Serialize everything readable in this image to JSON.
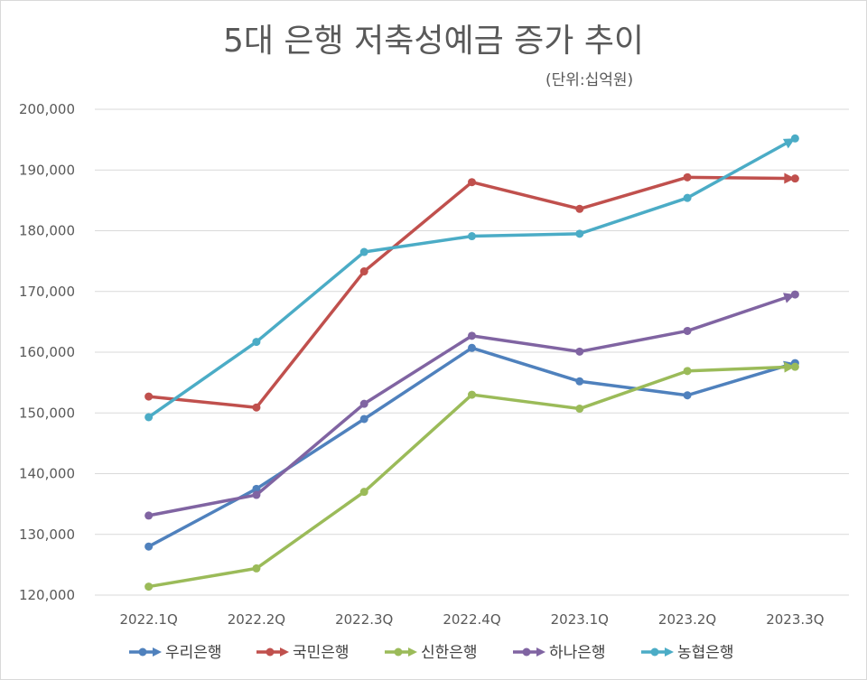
{
  "chart_data": {
    "type": "line",
    "title": "5대 은행 저축성예금 증가 추이",
    "subtitle": "(단위:십억원)",
    "categories": [
      "2022.1Q",
      "2022.2Q",
      "2022.3Q",
      "2022.4Q",
      "2023.1Q",
      "2023.2Q",
      "2023.3Q"
    ],
    "ylim": [
      120000,
      200000
    ],
    "yticks": [
      120000,
      130000,
      140000,
      150000,
      160000,
      170000,
      180000,
      190000,
      200000
    ],
    "ytick_labels": [
      "120,000",
      "130,000",
      "140,000",
      "150,000",
      "160,000",
      "170,000",
      "180,000",
      "190,000",
      "200,000"
    ],
    "grid": true,
    "legend_position": "bottom",
    "series": [
      {
        "name": "우리은행",
        "color": "#4f81bd",
        "values": [
          128000,
          137500,
          149000,
          160700,
          155200,
          152900,
          158200
        ]
      },
      {
        "name": "국민은행",
        "color": "#c0504d",
        "values": [
          152700,
          150900,
          173300,
          188000,
          183600,
          188800,
          188600
        ]
      },
      {
        "name": "신한은행",
        "color": "#9bbb59",
        "values": [
          121400,
          124400,
          137000,
          153000,
          150700,
          156900,
          157600
        ]
      },
      {
        "name": "하나은행",
        "color": "#8064a2",
        "values": [
          133100,
          136500,
          151500,
          162700,
          160100,
          163500,
          169500
        ]
      },
      {
        "name": "농협은행",
        "color": "#4bacc6",
        "values": [
          149300,
          161700,
          176500,
          179100,
          179500,
          185400,
          195200
        ]
      }
    ]
  }
}
